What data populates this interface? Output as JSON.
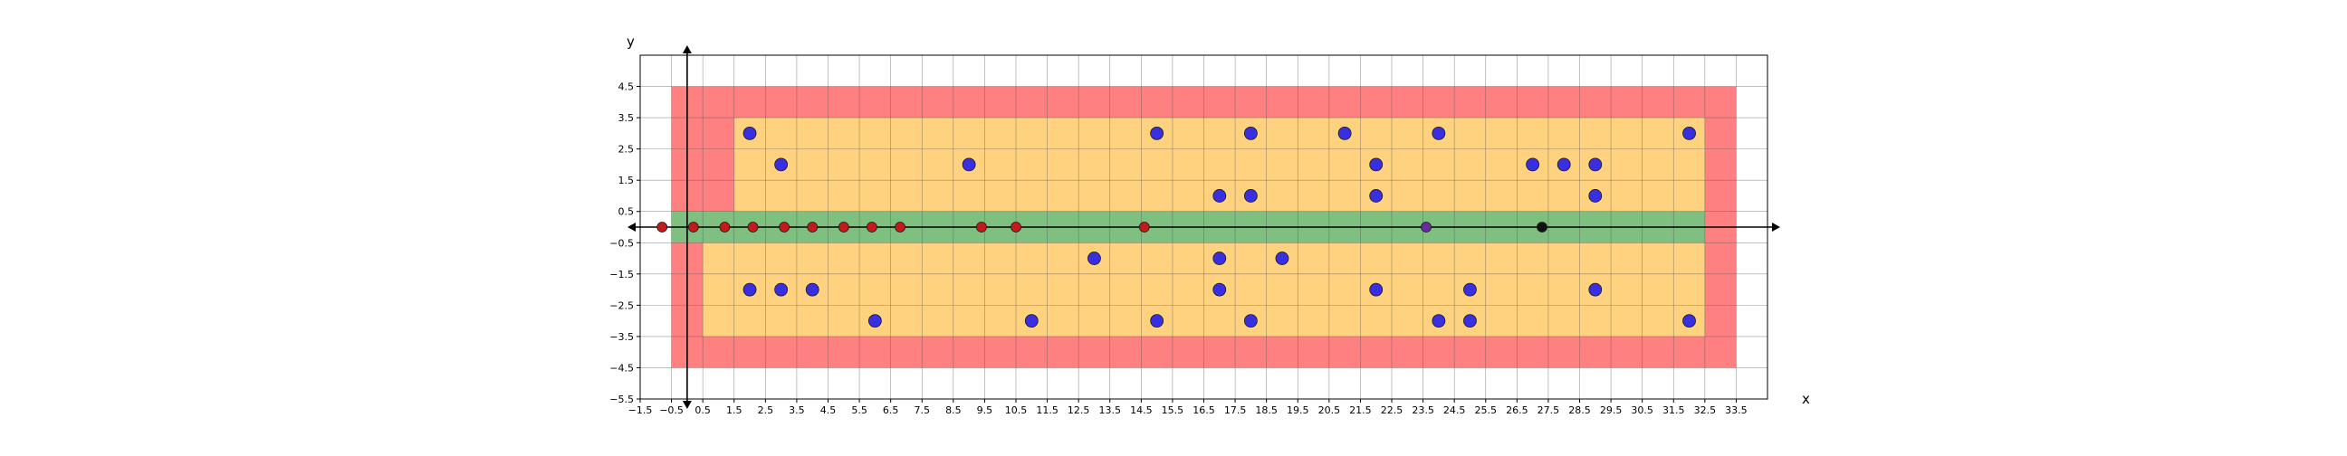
{
  "chart_data": {
    "type": "scatter",
    "title": "",
    "xlabel": "x",
    "ylabel": "y",
    "xlim": [
      -1.5,
      34.5
    ],
    "ylim": [
      -5.5,
      5.5
    ],
    "grid": true,
    "xticks": [
      "−1.5",
      "−0.5",
      "0.5",
      "1.5",
      "2.5",
      "3.5",
      "4.5",
      "5.5",
      "6.5",
      "7.5",
      "8.5",
      "9.5",
      "10.5",
      "11.5",
      "12.5",
      "13.5",
      "14.5",
      "15.5",
      "16.5",
      "17.5",
      "18.5",
      "19.5",
      "20.5",
      "21.5",
      "22.5",
      "23.5",
      "24.5",
      "25.5",
      "26.5",
      "27.5",
      "28.5",
      "29.5",
      "30.5",
      "31.5",
      "32.5",
      "33.5"
    ],
    "xtick_values": [
      -1.5,
      -0.5,
      0.5,
      1.5,
      2.5,
      3.5,
      4.5,
      5.5,
      6.5,
      7.5,
      8.5,
      9.5,
      10.5,
      11.5,
      12.5,
      13.5,
      14.5,
      15.5,
      16.5,
      17.5,
      18.5,
      19.5,
      20.5,
      21.5,
      22.5,
      23.5,
      24.5,
      25.5,
      26.5,
      27.5,
      28.5,
      29.5,
      30.5,
      31.5,
      32.5,
      33.5
    ],
    "yticks": [
      "4.5",
      "3.5",
      "2.5",
      "1.5",
      "0.5",
      "−0.5",
      "−1.5",
      "−2.5",
      "−3.5",
      "−4.5",
      "−5.5"
    ],
    "ytick_values": [
      4.5,
      3.5,
      2.5,
      1.5,
      0.5,
      -0.5,
      -1.5,
      -2.5,
      -3.5,
      -4.5,
      -5.5
    ],
    "regions": [
      {
        "x_from": -0.5,
        "x_to": 33.5,
        "y_from": -4.5,
        "y_to": 4.5,
        "color": "#ff8080"
      },
      {
        "x_from": 1.5,
        "x_to": 32.5,
        "y_from": 0.5,
        "y_to": 3.5,
        "color": "#ffd27f"
      },
      {
        "x_from": 0.5,
        "x_to": 32.5,
        "y_from": -3.5,
        "y_to": -0.5,
        "color": "#ffd27f"
      },
      {
        "x_from": -0.5,
        "x_to": 32.5,
        "y_from": -0.5,
        "y_to": 0.5,
        "color": "#7fbf7f"
      }
    ],
    "series": [
      {
        "marker_color": "#3a2fe0",
        "points": [
          [
            2,
            3
          ],
          [
            3,
            2
          ],
          [
            9,
            2
          ],
          [
            15,
            3
          ],
          [
            18,
            3
          ],
          [
            21,
            3
          ],
          [
            24,
            3
          ],
          [
            32,
            3
          ],
          [
            22,
            2
          ],
          [
            27,
            2
          ],
          [
            28,
            2
          ],
          [
            29,
            2
          ],
          [
            17,
            1
          ],
          [
            18,
            1
          ],
          [
            22,
            1
          ],
          [
            29,
            1
          ],
          [
            13,
            -1
          ],
          [
            17,
            -1
          ],
          [
            19,
            -1
          ],
          [
            2,
            -2
          ],
          [
            3,
            -2
          ],
          [
            4,
            -2
          ],
          [
            17,
            -2
          ],
          [
            22,
            -2
          ],
          [
            25,
            -2
          ],
          [
            29,
            -2
          ],
          [
            6,
            -3
          ],
          [
            11,
            -3
          ],
          [
            15,
            -3
          ],
          [
            18,
            -3
          ],
          [
            24,
            -3
          ],
          [
            25,
            -3
          ],
          [
            32,
            -3
          ]
        ]
      },
      {
        "marker_color": "#c41a1a",
        "points": [
          [
            -0.8,
            0
          ],
          [
            0.2,
            0
          ],
          [
            1.2,
            0
          ],
          [
            2.1,
            0
          ],
          [
            3.1,
            0
          ],
          [
            4.0,
            0
          ],
          [
            5.0,
            0
          ],
          [
            5.9,
            0
          ],
          [
            6.8,
            0
          ],
          [
            9.4,
            0
          ],
          [
            10.5,
            0
          ],
          [
            14.6,
            0
          ]
        ]
      },
      {
        "marker_color": "#6a2aa0",
        "points": [
          [
            23.6,
            0
          ]
        ]
      },
      {
        "marker_color": "#111111",
        "points": [
          [
            27.3,
            0
          ]
        ]
      }
    ]
  }
}
